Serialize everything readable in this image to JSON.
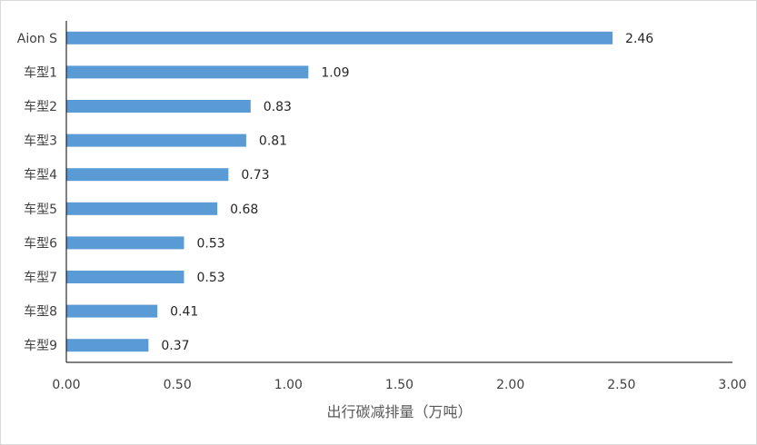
{
  "chart_data": {
    "type": "bar",
    "orientation": "horizontal",
    "categories": [
      "Aion S",
      "车型1",
      "车型2",
      "车型3",
      "车型4",
      "车型5",
      "车型6",
      "车型7",
      "车型8",
      "车型9"
    ],
    "values": [
      2.46,
      1.09,
      0.83,
      0.81,
      0.73,
      0.68,
      0.53,
      0.53,
      0.41,
      0.37
    ],
    "value_labels": [
      "2.46",
      "1.09",
      "0.83",
      "0.81",
      "0.73",
      "0.68",
      "0.53",
      "0.53",
      "0.41",
      "0.37"
    ],
    "xlabel": "出行碳减排量（万吨）",
    "ylabel": "",
    "xlim": [
      0,
      3
    ],
    "x_ticks": [
      "0.00",
      "0.50",
      "1.00",
      "1.50",
      "2.00",
      "2.50",
      "3.00"
    ],
    "x_tick_values": [
      0,
      0.5,
      1,
      1.5,
      2,
      2.5,
      3
    ],
    "grid": false,
    "legend": "none",
    "bar_color": "#5b9bd5"
  }
}
